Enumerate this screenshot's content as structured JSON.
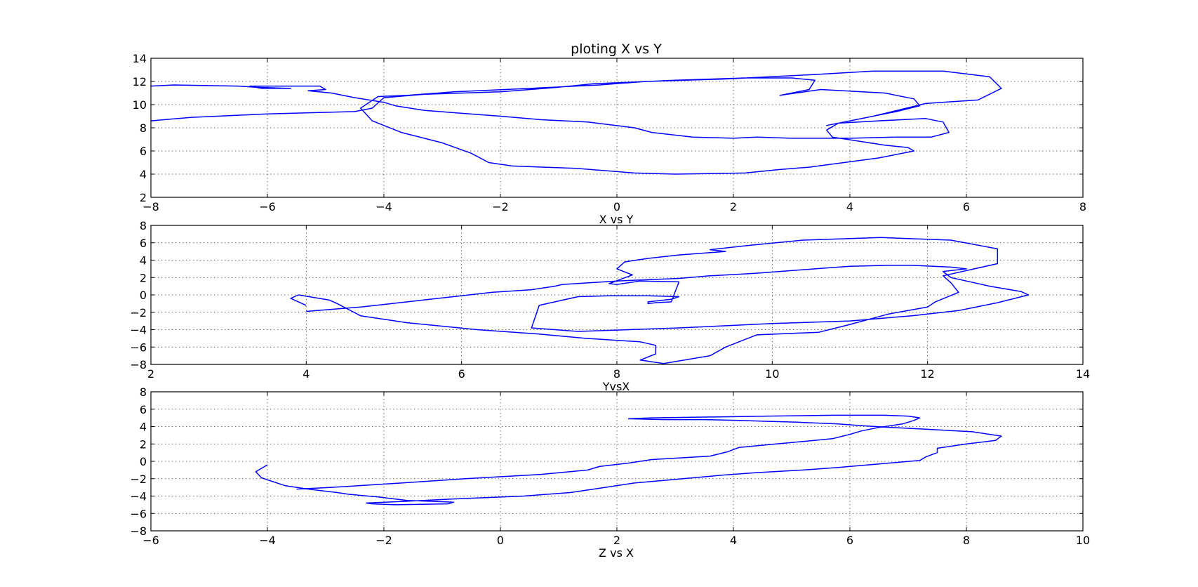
{
  "figure": {
    "background": "#ffffff"
  },
  "chart_data": [
    {
      "type": "line",
      "title": "ploting X vs Y",
      "xlabel": "X vs Y",
      "ylabel": "",
      "xlim": [
        -8,
        8
      ],
      "ylim": [
        2,
        14
      ],
      "xticks": [
        -8,
        -6,
        -4,
        -2,
        0,
        2,
        4,
        6,
        8
      ],
      "yticks": [
        2,
        4,
        6,
        8,
        10,
        12,
        14
      ],
      "xtick_labels": [
        "−8",
        "−6",
        "−4",
        "−2",
        "0",
        "2",
        "4",
        "6",
        "8"
      ],
      "ytick_labels": [
        "2",
        "4",
        "6",
        "8",
        "10",
        "12",
        "14"
      ],
      "grid": true,
      "color": "#0000ff",
      "series": [
        {
          "x": [
            -8.0,
            -7.3,
            -6.0,
            -4.5,
            -4.2,
            -4.0,
            -3.3,
            -2.0,
            -1.0,
            -0.4,
            1.0,
            2.2,
            3.0,
            3.4,
            3.3,
            2.8,
            3.5,
            4.6,
            5.1,
            5.2,
            4.8,
            3.6,
            3.9,
            4.4,
            5.3,
            5.9,
            6.2,
            6.6,
            6.4,
            5.6,
            4.4,
            3.4,
            1.8,
            0.5,
            -0.3,
            -1.5,
            -2.8,
            -3.6,
            -4.1,
            -4.4,
            -4.2,
            -3.7,
            -3.0,
            -2.5,
            -2.2,
            -1.8,
            -0.7,
            0.3,
            1.0,
            2.2,
            2.8,
            3.3,
            4.5,
            5.1,
            5.0,
            4.6,
            3.7,
            3.6,
            3.8,
            4.5,
            5.3,
            5.6,
            5.7,
            5.4,
            4.8,
            4.0,
            3.0,
            2.4,
            2.0,
            1.3,
            0.6,
            0.3,
            -0.5,
            -1.3,
            -2.0,
            -3.3,
            -3.8,
            -4.0,
            -4.5,
            -4.9,
            -5.3,
            -5.0,
            -5.1,
            -5.7,
            -6.3,
            -6.1,
            -5.6,
            -6.2,
            -6.5,
            -7.6,
            -8.0
          ],
          "y": [
            8.6,
            8.9,
            9.2,
            9.4,
            9.7,
            10.6,
            10.9,
            11.1,
            11.5,
            11.8,
            12.1,
            12.3,
            12.3,
            12.1,
            11.3,
            10.8,
            11.3,
            11.0,
            10.5,
            9.9,
            9.4,
            8.2,
            8.5,
            9.0,
            10.1,
            10.3,
            10.4,
            11.4,
            12.4,
            12.9,
            12.9,
            12.6,
            12.2,
            12.0,
            11.7,
            11.4,
            11.1,
            10.8,
            10.7,
            9.7,
            8.6,
            7.6,
            6.7,
            5.8,
            5.0,
            4.7,
            4.5,
            4.1,
            4.0,
            4.1,
            4.4,
            4.6,
            5.4,
            6.0,
            6.3,
            6.5,
            7.2,
            7.8,
            8.4,
            8.6,
            8.8,
            8.5,
            7.6,
            7.2,
            7.2,
            7.1,
            7.1,
            7.2,
            7.1,
            7.2,
            7.6,
            8.0,
            8.5,
            8.7,
            9.0,
            9.5,
            9.9,
            10.2,
            10.6,
            11.0,
            11.2,
            11.3,
            11.6,
            11.6,
            11.6,
            11.4,
            11.4,
            11.5,
            11.6,
            11.7,
            11.6
          ]
        }
      ]
    },
    {
      "type": "line",
      "title": "",
      "xlabel": "YvsX",
      "ylabel": "",
      "xlim": [
        2,
        14
      ],
      "ylim": [
        -8,
        8
      ],
      "xticks": [
        2,
        4,
        6,
        8,
        10,
        12,
        14
      ],
      "yticks": [
        -8,
        -6,
        -4,
        -2,
        0,
        2,
        4,
        6,
        8
      ],
      "xtick_labels": [
        "2",
        "4",
        "6",
        "8",
        "10",
        "12",
        "14"
      ],
      "ytick_labels": [
        "−8",
        "−6",
        "−4",
        "−2",
        "0",
        "2",
        "4",
        "6",
        "8"
      ],
      "grid": true,
      "color": "#0000ff",
      "series": [
        {
          "x": [
            4.0,
            3.8,
            3.9,
            4.3,
            4.4,
            4.7,
            5.3,
            6.2,
            7.0,
            7.6,
            8.3,
            8.5,
            8.5,
            8.3,
            8.6,
            9.2,
            9.4,
            9.8,
            10.6,
            11.0,
            11.5,
            12.0,
            12.1,
            12.4,
            12.3,
            12.2,
            12.9,
            12.9,
            12.3,
            11.4,
            10.4,
            9.7,
            9.2,
            9.4,
            8.8,
            8.4,
            8.1,
            8.0,
            8.2,
            7.9,
            8.0,
            8.3,
            8.8,
            8.7,
            8.5,
            8.4,
            8.4,
            8.7,
            8.8,
            8.4,
            7.9,
            7.5,
            7.0,
            6.9,
            7.5,
            8.8,
            10.0,
            11.0,
            11.8,
            12.4,
            12.9,
            13.3,
            13.2,
            12.8,
            12.3,
            12.2,
            12.5,
            12.3,
            11.8,
            11.5,
            11.0,
            10.7,
            10.4,
            9.8,
            9.2,
            8.8,
            8.0,
            7.3,
            7.2,
            6.9,
            6.4,
            5.7,
            5.0,
            4.7,
            4.0
          ],
          "y": [
            -1.2,
            -0.4,
            0.0,
            -0.6,
            -1.0,
            -2.4,
            -3.2,
            -4.0,
            -4.5,
            -5.0,
            -5.4,
            -5.8,
            -6.8,
            -7.5,
            -7.9,
            -7.0,
            -6.0,
            -4.6,
            -4.3,
            -3.4,
            -2.2,
            -1.4,
            -0.8,
            0.3,
            1.4,
            2.2,
            3.6,
            5.3,
            6.3,
            6.6,
            6.3,
            5.7,
            5.2,
            5.0,
            4.6,
            4.2,
            3.8,
            3.0,
            2.3,
            1.3,
            1.2,
            1.6,
            1.5,
            -0.8,
            -0.9,
            -1.0,
            -0.8,
            -0.5,
            -0.2,
            -0.1,
            -0.1,
            -0.2,
            -1.2,
            -3.8,
            -4.2,
            -3.8,
            -3.3,
            -3.0,
            -2.4,
            -1.8,
            -0.9,
            0.0,
            0.4,
            1.0,
            2.0,
            2.7,
            3.0,
            3.2,
            3.4,
            3.4,
            3.3,
            3.1,
            2.9,
            2.5,
            2.2,
            1.9,
            1.6,
            1.2,
            1.0,
            0.6,
            0.3,
            -0.4,
            -1.1,
            -1.4,
            -1.9
          ]
        }
      ]
    },
    {
      "type": "line",
      "title": "",
      "xlabel": "Z vs X",
      "ylabel": "",
      "xlim": [
        -6,
        10
      ],
      "ylim": [
        -8,
        8
      ],
      "xticks": [
        -6,
        -4,
        -2,
        0,
        2,
        4,
        6,
        8,
        10
      ],
      "yticks": [
        -8,
        -6,
        -4,
        -2,
        0,
        2,
        4,
        6,
        8
      ],
      "xtick_labels": [
        "−6",
        "−4",
        "−2",
        "0",
        "2",
        "4",
        "6",
        "8",
        "10"
      ],
      "ytick_labels": [
        "−8",
        "−6",
        "−4",
        "−2",
        "0",
        "2",
        "4",
        "6",
        "8"
      ],
      "grid": true,
      "color": "#0000ff",
      "series": [
        {
          "x": [
            -4.0,
            -4.2,
            -4.1,
            -3.7,
            -3.3,
            -2.8,
            -2.6,
            -2.1,
            -1.6,
            -0.8,
            -0.9,
            -1.8,
            -2.2,
            -2.3,
            -1.6,
            -0.7,
            0.4,
            1.2,
            1.6,
            2.0,
            2.3,
            2.8,
            3.3,
            3.8,
            4.4,
            5.2,
            5.8,
            6.5,
            7.2,
            7.3,
            7.5,
            7.5,
            8.0,
            8.5,
            8.6,
            8.1,
            7.3,
            6.7,
            6.2,
            5.8,
            5.1,
            4.6,
            4.1,
            3.5,
            2.8,
            2.2,
            2.6,
            3.6,
            4.6,
            5.7,
            6.6,
            7.0,
            7.2,
            7.1,
            6.9,
            6.5,
            6.2,
            6.0,
            5.7,
            4.9,
            4.1,
            3.9,
            3.6,
            2.6,
            2.2,
            1.7,
            1.5,
            0.7,
            -0.6,
            -1.7,
            -2.9,
            -3.5
          ],
          "y": [
            -0.4,
            -1.2,
            -1.9,
            -2.8,
            -3.2,
            -3.6,
            -3.8,
            -4.1,
            -4.5,
            -4.7,
            -4.9,
            -5.0,
            -4.9,
            -4.8,
            -4.6,
            -4.3,
            -4.0,
            -3.6,
            -3.2,
            -2.8,
            -2.5,
            -2.2,
            -1.9,
            -1.6,
            -1.3,
            -1.0,
            -0.7,
            -0.3,
            0.1,
            0.5,
            1.0,
            1.5,
            2.0,
            2.4,
            2.9,
            3.4,
            3.7,
            3.9,
            4.1,
            4.3,
            4.5,
            4.6,
            4.7,
            4.8,
            4.8,
            4.9,
            5.0,
            5.1,
            5.2,
            5.3,
            5.3,
            5.2,
            5.0,
            4.7,
            4.3,
            3.9,
            3.5,
            3.1,
            2.6,
            2.1,
            1.6,
            1.1,
            0.6,
            0.2,
            -0.2,
            -0.6,
            -1.0,
            -1.5,
            -2.0,
            -2.5,
            -3.0,
            -3.2
          ]
        }
      ]
    }
  ]
}
